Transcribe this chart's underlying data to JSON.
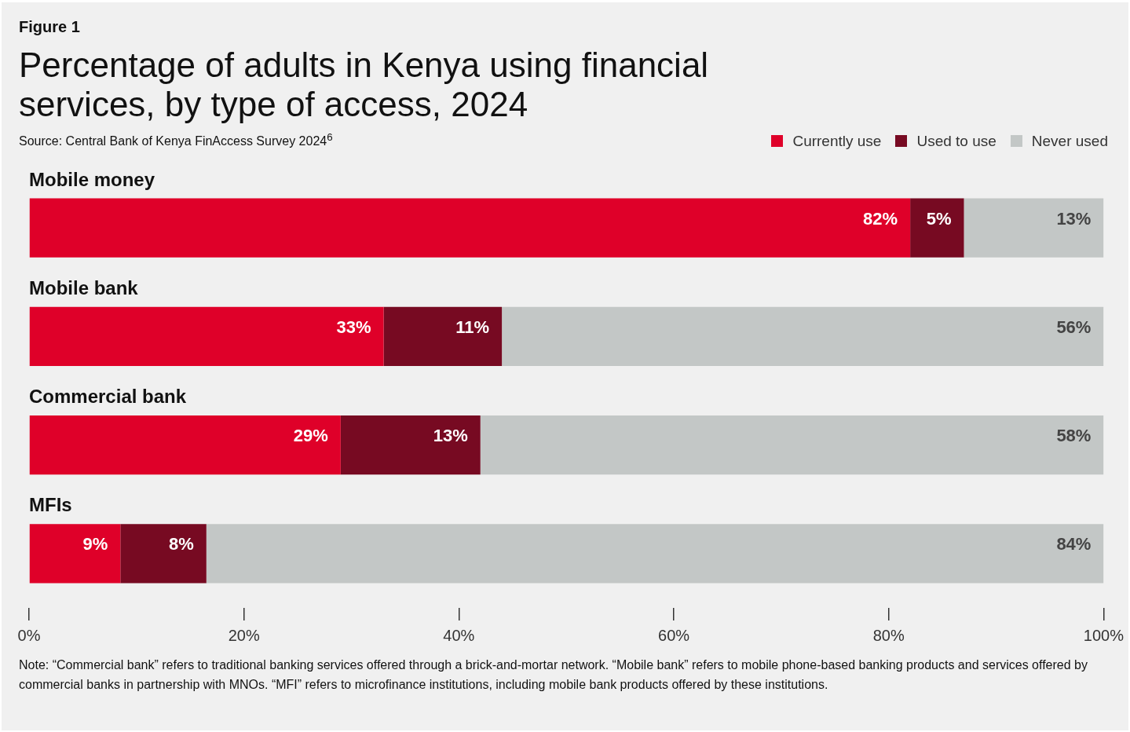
{
  "chart_data": {
    "type": "bar",
    "orientation": "horizontal",
    "stacked": true,
    "subtitle": "Figure 1",
    "title": "Percentage of adults in Kenya using financial services, by type of access, 2024",
    "annotations": [
      "Source: Central Bank of Kenya FinAccess Survey 2024$^{6}$",
      "Note: “Commercial bank” refers to traditional banking services offered through a brick-and-mortar network. “Mobile bank” refers to mobile phone-based banking products and services offered by commercial banks in partnership with MNOs. “MFI” refers to microfinance institutions, including mobile bank products offered by these institutions."
    ],
    "categories": [
      "Mobile money",
      "Mobile bank",
      "Commercial bank",
      "MFIs"
    ],
    "series": [
      {
        "name": "Currently use",
        "color": "#df0029",
        "values": [
          82,
          33,
          29,
          8.5
        ],
        "value_labels": [
          "82%",
          "33%",
          "29%",
          "9%"
        ]
      },
      {
        "name": "Used to use",
        "color": "#770a22",
        "values": [
          5,
          11,
          13,
          8
        ],
        "value_labels": [
          "5%",
          "11%",
          "13%",
          "8%"
        ]
      },
      {
        "name": "Never used",
        "color": "#c3c7c6",
        "values": [
          13,
          56,
          58,
          83.5
        ],
        "value_labels": [
          "13%",
          "56%",
          "58%",
          "84%"
        ]
      }
    ],
    "xlim": [
      0,
      100
    ],
    "xticks": [
      {
        "value": 0,
        "label": "0%"
      },
      {
        "value": 20,
        "label": "20%"
      },
      {
        "value": 40,
        "label": "40%"
      },
      {
        "value": 60,
        "label": "60%"
      },
      {
        "value": 80,
        "label": "80%"
      },
      {
        "value": 100,
        "label": "100%"
      }
    ],
    "grid": false,
    "legend": "top right"
  }
}
